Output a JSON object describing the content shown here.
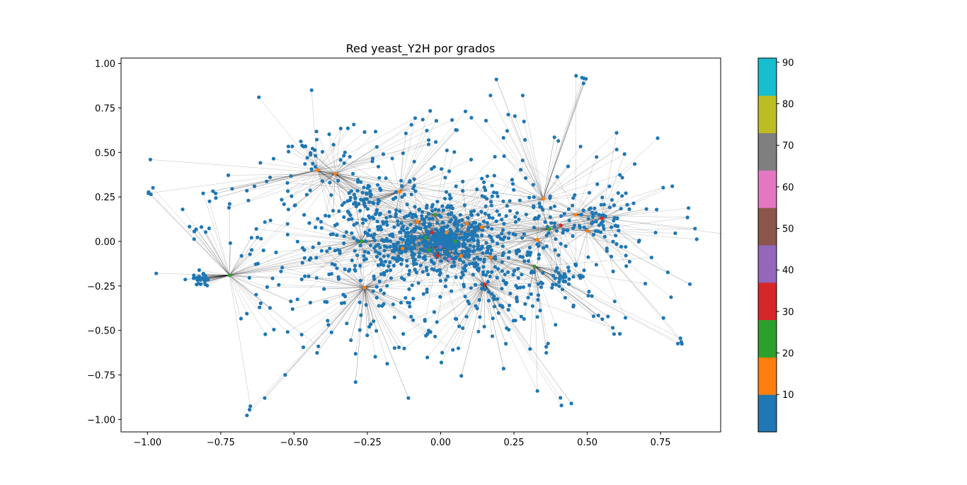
{
  "chart_data": {
    "type": "scatter",
    "subtype": "network-graph",
    "title": "Red yeast_Y2H por grados",
    "xlabel": "",
    "ylabel": "",
    "xlim": [
      -1.09,
      0.955
    ],
    "ylim": [
      -1.07,
      1.03
    ],
    "xticks": [
      -1.0,
      -0.75,
      -0.5,
      -0.25,
      0.0,
      0.25,
      0.5,
      0.75
    ],
    "xtick_labels": [
      "−1.00",
      "−0.75",
      "−0.50",
      "−0.25",
      "0.00",
      "0.25",
      "0.50",
      "0.75"
    ],
    "yticks": [
      1.0,
      0.75,
      0.5,
      0.25,
      0.0,
      -0.25,
      -0.5,
      -0.75,
      -1.0
    ],
    "ytick_labels": [
      "1.00",
      "0.75",
      "0.50",
      "0.25",
      "0.00",
      "−0.25",
      "−0.50",
      "−0.75",
      "−1.00"
    ],
    "grid": false,
    "colorbar": {
      "range": [
        1,
        91
      ],
      "ticks": [
        10,
        20,
        30,
        40,
        50,
        60,
        70,
        80,
        90
      ],
      "tick_labels": [
        "10",
        "20",
        "30",
        "40",
        "50",
        "60",
        "70",
        "80",
        "90"
      ],
      "colors": [
        "#1f77b4",
        "#ff7f0e",
        "#2ca02c",
        "#d62728",
        "#9467bd",
        "#8c564b",
        "#e377c2",
        "#7f7f7f",
        "#bcbd22",
        "#17becf"
      ]
    },
    "hubs": [
      {
        "x": -0.72,
        "y": -0.19,
        "degree": 25
      },
      {
        "x": -0.42,
        "y": 0.4,
        "degree": 15
      },
      {
        "x": -0.36,
        "y": 0.38,
        "degree": 15
      },
      {
        "x": -0.27,
        "y": 0.0,
        "degree": 25
      },
      {
        "x": -0.26,
        "y": -0.26,
        "degree": 15
      },
      {
        "x": -0.14,
        "y": 0.28,
        "degree": 15
      },
      {
        "x": -0.13,
        "y": -0.04,
        "degree": 15
      },
      {
        "x": -0.08,
        "y": 0.11,
        "degree": 15
      },
      {
        "x": -0.05,
        "y": 0.02,
        "degree": 25
      },
      {
        "x": -0.04,
        "y": -0.05,
        "degree": 25
      },
      {
        "x": -0.03,
        "y": 0.05,
        "degree": 35
      },
      {
        "x": -0.02,
        "y": 0.15,
        "degree": 25
      },
      {
        "x": -0.01,
        "y": -0.08,
        "degree": 35
      },
      {
        "x": 0.0,
        "y": -0.03,
        "degree": 45
      },
      {
        "x": 0.02,
        "y": 0.05,
        "degree": 15
      },
      {
        "x": 0.03,
        "y": -0.1,
        "degree": 55
      },
      {
        "x": 0.05,
        "y": 0.0,
        "degree": 25
      },
      {
        "x": 0.07,
        "y": -0.08,
        "degree": 15
      },
      {
        "x": 0.09,
        "y": 0.1,
        "degree": 15
      },
      {
        "x": 0.14,
        "y": 0.08,
        "degree": 15
      },
      {
        "x": 0.15,
        "y": -0.24,
        "degree": 35
      },
      {
        "x": 0.17,
        "y": -0.09,
        "degree": 15
      },
      {
        "x": 0.32,
        "y": -0.14,
        "degree": 25
      },
      {
        "x": 0.33,
        "y": 0.01,
        "degree": 15
      },
      {
        "x": 0.35,
        "y": 0.24,
        "degree": 15
      },
      {
        "x": 0.37,
        "y": 0.07,
        "degree": 25
      },
      {
        "x": 0.41,
        "y": 0.09,
        "degree": 35
      },
      {
        "x": 0.46,
        "y": 0.15,
        "degree": 15
      },
      {
        "x": 0.5,
        "y": 0.06,
        "degree": 15
      },
      {
        "x": 0.55,
        "y": 0.13,
        "degree": 35
      }
    ]
  }
}
